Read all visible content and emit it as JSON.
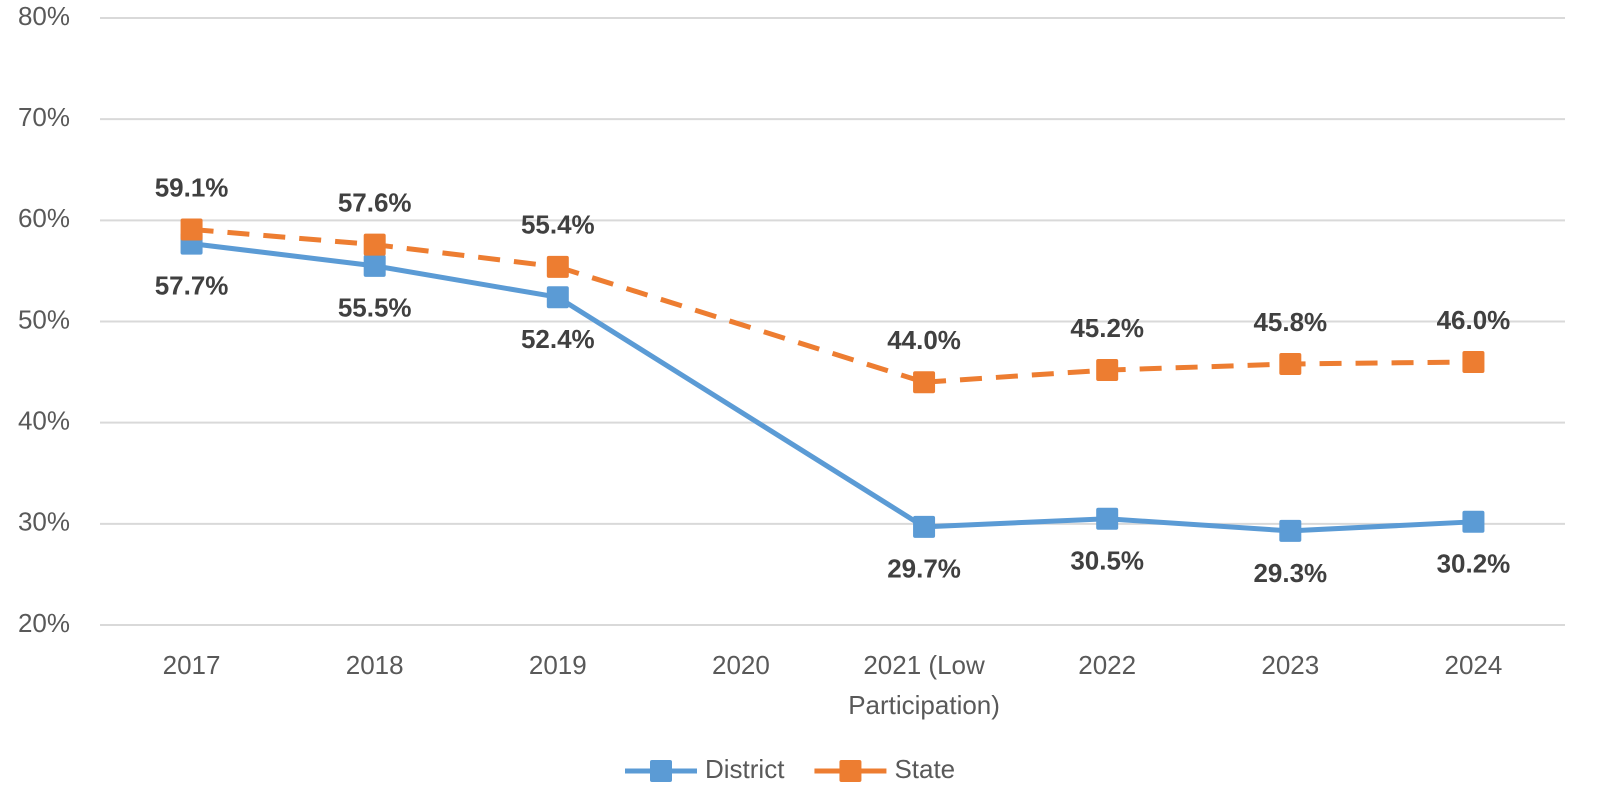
{
  "chart_data": {
    "type": "line",
    "categories": [
      "2017",
      "2018",
      "2019",
      "2020",
      "2021 (Low Participation)",
      "2022",
      "2023",
      "2024"
    ],
    "series": [
      {
        "name": "District",
        "color": "#5b9bd5",
        "dashed": false,
        "label_position": "below",
        "values": [
          57.7,
          55.5,
          52.4,
          null,
          29.7,
          30.5,
          29.3,
          30.2
        ],
        "value_labels": [
          "57.7%",
          "55.5%",
          "52.4%",
          null,
          "29.7%",
          "30.5%",
          "29.3%",
          "30.2%"
        ]
      },
      {
        "name": "State",
        "color": "#ed7d31",
        "dashed": true,
        "label_position": "above",
        "values": [
          59.1,
          57.6,
          55.4,
          null,
          44.0,
          45.2,
          45.8,
          46.0
        ],
        "value_labels": [
          "59.1%",
          "57.6%",
          "55.4%",
          null,
          "44.0%",
          "45.2%",
          "45.8%",
          "46.0%"
        ]
      }
    ],
    "ylim": [
      20,
      80
    ],
    "yticks": [
      {
        "value": 20,
        "label": "20%"
      },
      {
        "value": 30,
        "label": "30%"
      },
      {
        "value": 40,
        "label": "40%"
      },
      {
        "value": 50,
        "label": "50%"
      },
      {
        "value": 60,
        "label": "60%"
      },
      {
        "value": 70,
        "label": "70%"
      },
      {
        "value": 80,
        "label": "80%"
      }
    ],
    "grid": true,
    "connect_gaps": true,
    "legend": "bottom"
  }
}
